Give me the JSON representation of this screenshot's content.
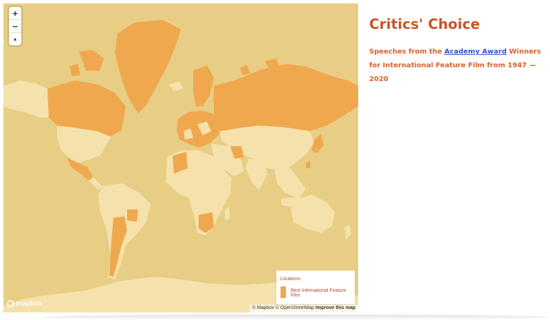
{
  "page": {
    "title": "Critics' Choice",
    "subtitle_before": "Speeches from the",
    "subtitle_link": "Academy Award",
    "subtitle_after": "Winners for International Feature Film from 1947 — 2020"
  },
  "map": {
    "zoom_controls": {
      "zoom_in": "+",
      "zoom_out": "−",
      "compass": "▲"
    },
    "legend": {
      "title": "Locations",
      "items": [
        {
          "label": "Best International Feature Film",
          "color": "#f0a84e"
        }
      ]
    },
    "attribution": {
      "mapbox": "© Mapbox",
      "osm": "© OpenStreetMap",
      "improve": "Improve this map"
    },
    "logo_text": "mapbox",
    "colors": {
      "ocean": "#e8cd84",
      "land": "#f5e1ab",
      "highlight": "#f0a84e",
      "title": "#c85428",
      "link": "#2e55c5"
    }
  }
}
